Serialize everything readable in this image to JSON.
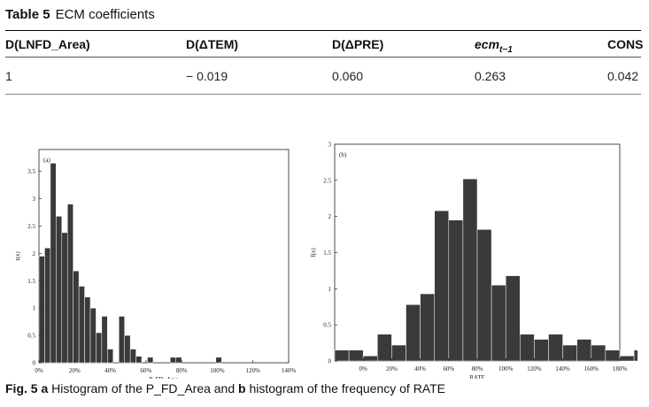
{
  "table": {
    "label": "Table 5",
    "title": "ECM coefficients",
    "headers": [
      "D(LNFD_Area)",
      "D(ΔTEM)",
      "D(ΔPRE)",
      "ecm",
      "CONS"
    ],
    "ecm_subscript": "t−1",
    "row": [
      "1",
      "− 0.019",
      "0.060",
      "0.263",
      "0.042"
    ]
  },
  "figure": {
    "caption_label": "Fig. 5",
    "caption_a": "a",
    "caption_text1": "Histogram of the P_FD_Area and",
    "caption_b": "b",
    "caption_text2": "histogram of the frequency of RATE"
  },
  "chart_data": [
    {
      "type": "bar",
      "panel_label": "(a)",
      "xlabel": "P_FD_Area",
      "ylabel": "f(x)",
      "bin_start": 0,
      "bin_width": 3.2,
      "xticks": [
        "0%",
        "20%",
        "40%",
        "60%",
        "80%",
        "100%",
        "120%",
        "140%"
      ],
      "xtick_values": [
        0,
        20,
        40,
        60,
        80,
        100,
        120,
        140
      ],
      "xlim": [
        0,
        140
      ],
      "yticks": [
        "0",
        "0.5",
        "1",
        "1.5",
        "2",
        "2.5",
        "3",
        "3.5"
      ],
      "ytick_values": [
        0,
        0.5,
        1,
        1.5,
        2,
        2.5,
        3,
        3.5
      ],
      "ylim": [
        0,
        3.9
      ],
      "values": [
        1.95,
        2.1,
        3.65,
        2.68,
        2.38,
        2.9,
        1.68,
        1.4,
        1.2,
        1.0,
        0.55,
        0.85,
        0.25,
        0,
        0.85,
        0.5,
        0.25,
        0.12,
        0,
        0.1,
        0,
        0,
        0,
        0.1,
        0.1,
        0,
        0,
        0,
        0,
        0,
        0,
        0.1
      ]
    },
    {
      "type": "bar",
      "panel_label": "(b)",
      "xlabel": "RATE",
      "ylabel": "f(x)",
      "bin_start": -20,
      "bin_width": 10,
      "xticks": [
        "0%",
        "20%",
        "40%",
        "60%",
        "80%",
        "100%",
        "120%",
        "140%",
        "160%",
        "180%"
      ],
      "xtick_values": [
        0,
        20,
        40,
        60,
        80,
        100,
        120,
        140,
        160,
        180
      ],
      "xlim": [
        -20,
        180
      ],
      "yticks": [
        "0",
        "0.5",
        "1",
        "1.5",
        "2",
        "2.5",
        "3"
      ],
      "ytick_values": [
        0,
        0.5,
        1,
        1.5,
        2,
        2.5,
        3
      ],
      "ylim": [
        0,
        3
      ],
      "values": [
        0.15,
        0.15,
        0.07,
        0.37,
        0.22,
        0.78,
        0.93,
        2.08,
        1.95,
        2.52,
        1.82,
        1.05,
        1.18,
        0.37,
        0.3,
        0.37,
        0.22,
        0.3,
        0.22,
        0.15,
        0.07,
        0.15,
        0,
        0.07,
        0.15,
        0.07,
        0,
        0.07,
        0.07
      ]
    }
  ]
}
